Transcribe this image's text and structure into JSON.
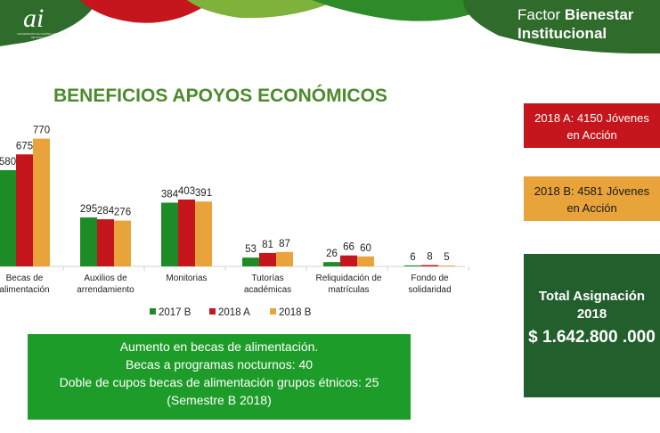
{
  "header": {
    "logo_text": "ai",
    "logo_subtext": "UNIVERSIDAD DE NARIÑO ACREDITADA DE ALTA CALIDAD",
    "section_prefix": "Factor",
    "section_bold": "Bienestar",
    "section_line2": "Institucional"
  },
  "title": "BENEFICIOS APOYOS ECONÓMICOS",
  "colors": {
    "s2017B": "#1e8c26",
    "s2018A": "#c4161c",
    "s2018B": "#e8a33a",
    "title": "#4d8a2e",
    "banner_green": "#2f6b2a"
  },
  "chart_data": {
    "type": "bar",
    "categories": [
      [
        "Becas de",
        "alimentación"
      ],
      [
        "Auxilios de",
        "arrendamiento"
      ],
      [
        "Monitorias"
      ],
      [
        "Tutorías",
        "académicas"
      ],
      [
        "Reliquidación de",
        "matrículas"
      ],
      [
        "Fondo de",
        "solidaridad"
      ]
    ],
    "category_labels_visible": [
      "Becas de alimentación",
      "Auxilios de arrendamiento",
      "Monitorias",
      "Tutorías académicas",
      "Reliquidación de matrículas",
      "Fondo de solidaridad"
    ],
    "series": [
      {
        "name": "2017 B",
        "values": [
          580,
          295,
          384,
          53,
          26,
          6
        ]
      },
      {
        "name": "2018 A",
        "values": [
          675,
          284,
          403,
          81,
          66,
          8
        ]
      },
      {
        "name": "2018 B",
        "values": [
          770,
          276,
          391,
          87,
          60,
          5
        ]
      }
    ],
    "ylim": [
      0,
      800
    ],
    "legend_position": "bottom",
    "grid": false
  },
  "info": {
    "lines": [
      "Aumento en becas de alimentación.",
      "Becas a programas nocturnos: 40",
      "Doble de cupos  becas de alimentación  grupos étnicos: 25",
      "(Semestre B 2018)"
    ]
  },
  "cards": {
    "red_line1": "2018 A: 4150 Jóvenes",
    "red_line2": "en Acción",
    "orange_line1": "2018 B: 4581 Jóvenes",
    "orange_line2": "en Acción",
    "total_line1": "Total Asignación",
    "total_line2": "2018",
    "total_amount": "$ 1.642.800 .000"
  }
}
